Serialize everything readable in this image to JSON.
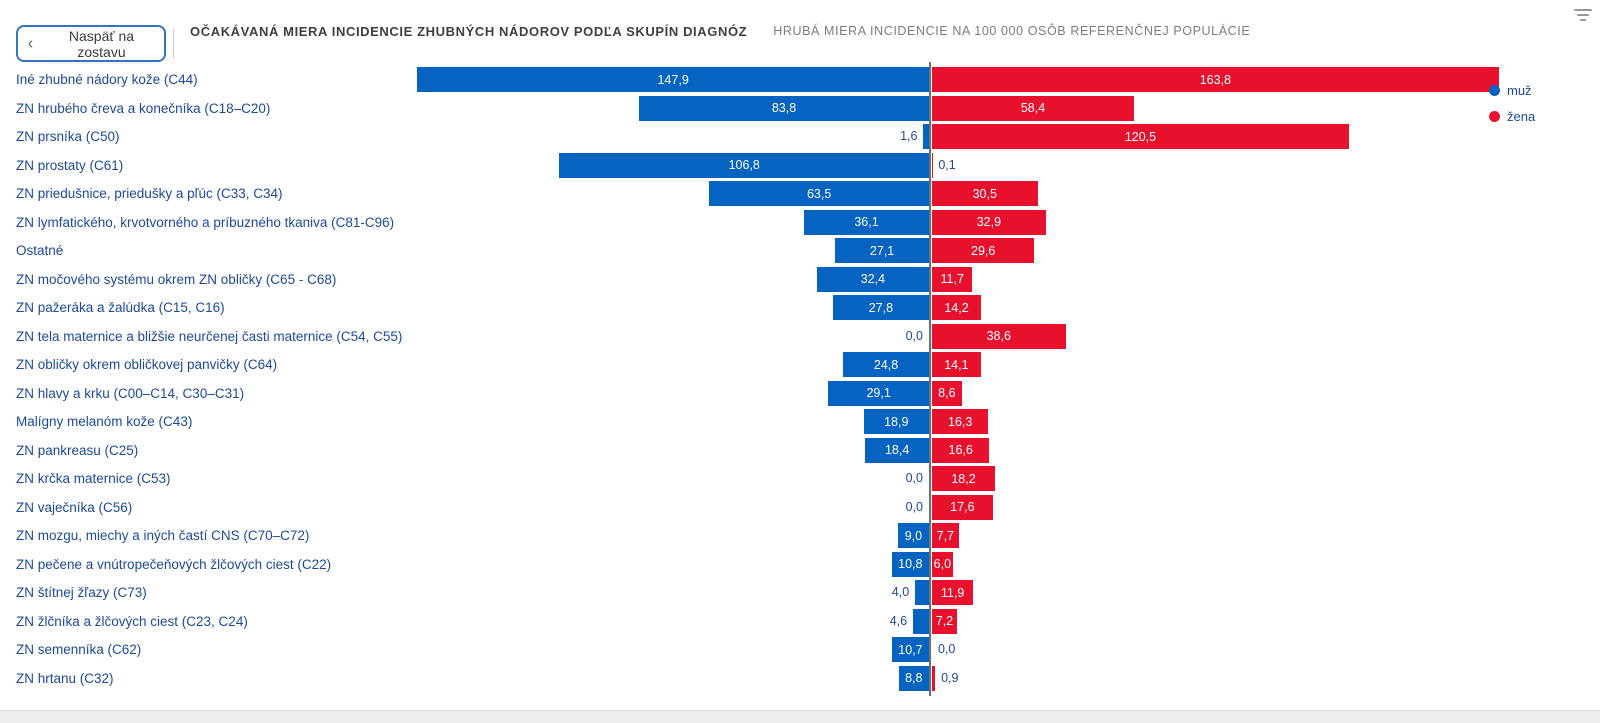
{
  "header": {
    "back_button_label": "Naspäť na zostavu",
    "title": "OČAKÁVANÁ MIERA INCIDENCIE ZHUBNÝCH NÁDOROV PODĽA SKUPÍN DIAGNÓZ",
    "subtitle": "HRUBÁ MIERA INCIDENCIE NA 100 000 OSÔB REFERENČNEJ POPULÁCIE"
  },
  "legend": [
    {
      "label": "muž",
      "color": "#0563c1"
    },
    {
      "label": "žena",
      "color": "#e8112d"
    }
  ],
  "chart_data": {
    "type": "bar",
    "variant": "diverging-tornado",
    "title": "OČAKÁVANÁ MIERA INCIDENCIE ZHUBNÝCH NÁDOROV PODĽA SKUPÍN DIAGNÓZ",
    "subtitle": "HRUBÁ MIERA INCIDENCIE NA 100 000 OSÔB REFERENČNEJ POPULÁCIE",
    "decimal_separator": ",",
    "legend_position": "top-right",
    "grid": false,
    "value_range_per_side": [
      0,
      170
    ],
    "categories": [
      "Iné zhubné nádory kože (C44)",
      "ZN hrubého čreva a konečníka (C18–C20)",
      "ZN prsníka (C50)",
      "ZN prostaty (C61)",
      "ZN priedušnice, priedušky a pľúc (C33, C34)",
      "ZN lymfatického, krvotvorného a príbuzného tkaniva (C81-C96)",
      "Ostatné",
      "ZN močového systému okrem ZN obličky (C65 - C68)",
      "ZN pažeráka a žalúdka (C15, C16)",
      "ZN tela maternice a bližšie neurčenej časti maternice (C54, C55)",
      "ZN obličky okrem obličkovej panvičky (C64)",
      "ZN hlavy a krku (C00–C14, C30–C31)",
      "Malígny melanóm kože (C43)",
      "ZN pankreasu (C25)",
      "ZN krčka maternice (C53)",
      "ZN vaječníka (C56)",
      "ZN mozgu, miechy a iných častí CNS (C70–C72)",
      "ZN pečene a vnútropečeňových žlčových ciest (C22)",
      "ZN štítnej žľazy (C73)",
      "ZN žlčníka a žlčových ciest (C23, C24)",
      "ZN semenníka (C62)",
      "ZN hrtanu (C32)"
    ],
    "series": [
      {
        "name": "muž",
        "side": "left",
        "color": "#0563c1",
        "values": [
          147.9,
          83.8,
          1.6,
          106.8,
          63.5,
          36.1,
          27.1,
          32.4,
          27.8,
          0.0,
          24.8,
          29.1,
          18.9,
          18.4,
          0.0,
          0.0,
          9.0,
          10.8,
          4.0,
          4.6,
          10.7,
          8.8
        ]
      },
      {
        "name": "žena",
        "side": "right",
        "color": "#e8112d",
        "values": [
          163.8,
          58.4,
          120.5,
          0.1,
          30.5,
          32.9,
          29.6,
          11.7,
          14.2,
          38.6,
          14.1,
          8.6,
          16.3,
          16.6,
          18.2,
          17.6,
          7.7,
          6.0,
          11.9,
          7.2,
          0.0,
          0.9
        ]
      }
    ],
    "colors": {
      "male_bar": "#0563c1",
      "female_bar": "#e8112d",
      "category_text": "#1b4a9b",
      "inside_value_text": "#ffffff",
      "axis_line": "#6f6f6f"
    }
  }
}
